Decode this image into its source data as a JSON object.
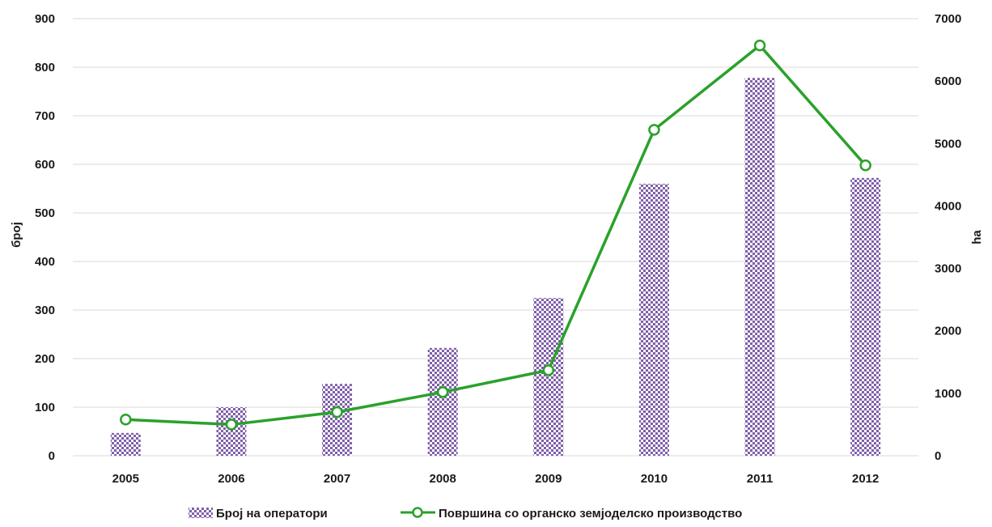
{
  "chart_data": {
    "type": "bar",
    "categories": [
      "2005",
      "2006",
      "2007",
      "2008",
      "2009",
      "2010",
      "2011",
      "2012"
    ],
    "series": [
      {
        "name": "Број на оператори",
        "type": "bar",
        "axis": "left",
        "values": [
          47,
          100,
          148,
          222,
          325,
          560,
          778,
          572
        ]
      },
      {
        "name": "Површина со органско земјоделско производство",
        "type": "line",
        "axis": "right",
        "values": [
          580,
          500,
          700,
          1020,
          1370,
          5220,
          6570,
          4650
        ]
      }
    ],
    "ylabel_left": "број",
    "ylabel_right": "ha",
    "ylim_left": [
      0,
      900
    ],
    "ylim_right": [
      0,
      7000
    ],
    "yticks_left": [
      "0",
      "100",
      "200",
      "300",
      "400",
      "500",
      "600",
      "700",
      "800",
      "900"
    ],
    "yticks_right": [
      "0",
      "1000",
      "2000",
      "3000",
      "4000",
      "5000",
      "6000",
      "7000"
    ],
    "grid": true,
    "legend": "bottom",
    "colors": {
      "bar": "#7f5fa8",
      "bar_light": "#ffffff",
      "line": "#2aa12a",
      "marker_fill": "#ffffff"
    }
  }
}
